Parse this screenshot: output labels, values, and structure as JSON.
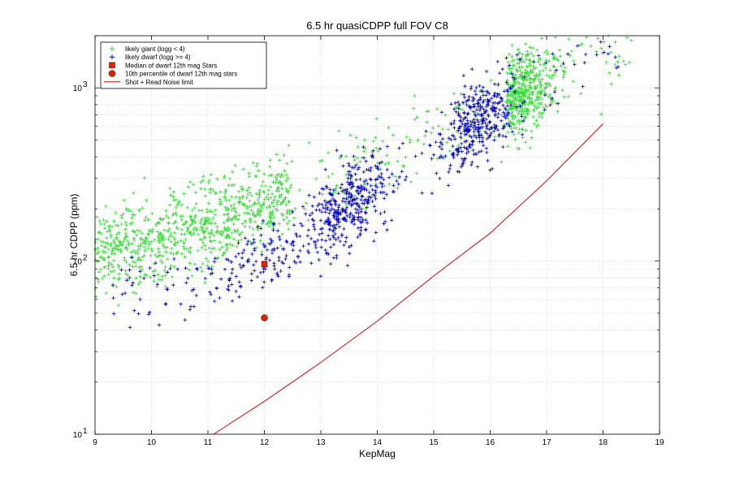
{
  "chart_data": {
    "type": "scatter",
    "title": "6.5 hr quasiCDPP full FOV C8",
    "xlabel": "KepMag",
    "ylabel": "6.5 hr CDPP (ppm)",
    "xlim": [
      9,
      19
    ],
    "ylim": [
      10,
      2000
    ],
    "yscale": "log",
    "x_ticks": [
      "9",
      "10",
      "11",
      "12",
      "13",
      "14",
      "15",
      "16",
      "17",
      "18",
      "19"
    ],
    "y_ticks": [
      {
        "value": 10,
        "mantissa": "10",
        "exponent": "1"
      },
      {
        "value": 100,
        "mantissa": "10",
        "exponent": "2"
      },
      {
        "value": 1000,
        "mantissa": "10",
        "exponent": "3"
      }
    ],
    "grid": true,
    "legend_position": "top-left",
    "colors": {
      "giant": "#33dd33",
      "dwarf": "#0000cc",
      "marker": "#dd2200",
      "noise": "#ee0000"
    },
    "series": [
      {
        "name": "likely giant (logg < 4)",
        "kind": "scatter",
        "marker": "+",
        "color": "#33dd33",
        "trend": {
          "x": [
            9,
            10,
            11,
            12,
            13,
            14,
            15,
            16,
            17,
            18
          ],
          "y": [
            110,
            130,
            160,
            210,
            280,
            380,
            520,
            760,
            1100,
            1600
          ]
        }
      },
      {
        "name": "likely dwarf (logg >= 4)",
        "kind": "scatter",
        "marker": "+",
        "color": "#0000cc",
        "trend": {
          "x": [
            9,
            10,
            11,
            12,
            13,
            13.5,
            14,
            15,
            15.8,
            16.5,
            17,
            18
          ],
          "y": [
            60,
            70,
            80,
            100,
            160,
            220,
            260,
            420,
            650,
            900,
            1100,
            1500
          ]
        }
      },
      {
        "name": "Median of dwarf 12th mag Stars",
        "kind": "point",
        "marker": "square",
        "color": "#dd2200",
        "x": [
          12
        ],
        "y": [
          96
        ]
      },
      {
        "name": "10th percentile of dwarf 12th mag stars",
        "kind": "point",
        "marker": "circle",
        "color": "#dd2200",
        "x": [
          12
        ],
        "y": [
          47
        ]
      },
      {
        "name": "Shot + Read Noise limit",
        "kind": "line",
        "color": "#ee0000",
        "x": [
          11.1,
          12,
          13,
          14,
          15,
          16,
          17,
          18
        ],
        "y": [
          10,
          15.5,
          26,
          45,
          82,
          145,
          290,
          620
        ]
      }
    ]
  }
}
